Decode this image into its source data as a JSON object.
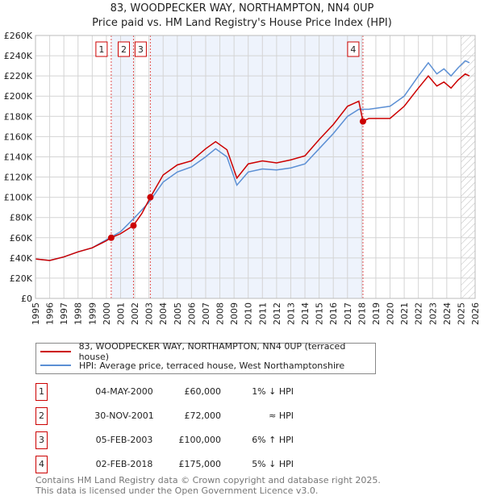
{
  "header": {
    "title": "83, WOODPECKER WAY, NORTHAMPTON, NN4 0UP",
    "subtitle": "Price paid vs. HM Land Registry's House Price Index (HPI)"
  },
  "chart_data": {
    "type": "line",
    "title": "83, WOODPECKER WAY, NORTHAMPTON, NN4 0UP",
    "subtitle": "Price paid vs. HM Land Registry's House Price Index (HPI)",
    "xlim": [
      1995,
      2026
    ],
    "ylim": [
      0,
      260000
    ],
    "x_ticks": [
      "1995",
      "1996",
      "1997",
      "1998",
      "1999",
      "2000",
      "2001",
      "2002",
      "2003",
      "2004",
      "2005",
      "2006",
      "2007",
      "2008",
      "2009",
      "2010",
      "2011",
      "2012",
      "2013",
      "2014",
      "2015",
      "2016",
      "2017",
      "2018",
      "2019",
      "2020",
      "2021",
      "2022",
      "2023",
      "2024",
      "2025",
      "2026"
    ],
    "y_ticks": [
      "£0",
      "£20K",
      "£40K",
      "£60K",
      "£80K",
      "£100K",
      "£120K",
      "£140K",
      "£160K",
      "£180K",
      "£200K",
      "£220K",
      "£240K",
      "£260K"
    ],
    "grid": true,
    "legend_placement": "below",
    "series": [
      {
        "name": "83, WOODPECKER WAY, NORTHAMPTON, NN4 0UP (terraced house)",
        "color": "#cc0000",
        "x": [
          1995,
          1996,
          1997,
          1998,
          1999,
          2000,
          2000.34,
          2001,
          2001.9,
          2002.5,
          2003.1,
          2004,
          2005,
          2006,
          2007,
          2007.7,
          2008.5,
          2009.2,
          2010,
          2011,
          2012,
          2013,
          2014,
          2015,
          2016,
          2017,
          2017.8,
          2018.09,
          2018.5,
          2019,
          2020,
          2021,
          2022,
          2022.7,
          2023.3,
          2023.8,
          2024.3,
          2024.8,
          2025.3,
          2025.6
        ],
        "y": [
          39000,
          37500,
          41000,
          46000,
          50000,
          57000,
          60000,
          64000,
          72000,
          84000,
          100000,
          122000,
          132000,
          136000,
          148000,
          155000,
          147000,
          119000,
          133000,
          136000,
          134000,
          137000,
          141000,
          157000,
          172000,
          190000,
          195000,
          175000,
          178000,
          178000,
          178000,
          190000,
          208000,
          220000,
          210000,
          214000,
          208000,
          216000,
          222000,
          220000
        ]
      },
      {
        "name": "HPI: Average price, terraced house, West Northamptonshire",
        "color": "#5b8fd4",
        "x": [
          1995,
          1996,
          1997,
          1998,
          1999,
          2000,
          2001,
          2002,
          2003,
          2004,
          2005,
          2006,
          2007,
          2007.7,
          2008.5,
          2009.2,
          2010,
          2011,
          2012,
          2013,
          2014,
          2015,
          2016,
          2017,
          2017.8,
          2018.5,
          2019,
          2020,
          2021,
          2022,
          2022.7,
          2023.3,
          2023.8,
          2024.3,
          2024.8,
          2025.3,
          2025.6
        ],
        "y": [
          39000,
          37500,
          41000,
          46000,
          50000,
          58000,
          66000,
          80000,
          95000,
          115000,
          125000,
          130000,
          140000,
          148000,
          140000,
          112000,
          125000,
          128000,
          127000,
          129000,
          133000,
          148000,
          163000,
          180000,
          187000,
          187000,
          188000,
          190000,
          200000,
          220000,
          233000,
          222000,
          227000,
          220000,
          228000,
          235000,
          233000
        ]
      }
    ],
    "sales": [
      {
        "label": "1",
        "x": 2000.34,
        "y": 60000
      },
      {
        "label": "2",
        "x": 2001.91,
        "y": 72000
      },
      {
        "label": "3",
        "x": 2003.1,
        "y": 100000
      },
      {
        "label": "4",
        "x": 2018.09,
        "y": 175000
      }
    ],
    "shaded_ranges": [
      [
        2000.34,
        2001.91
      ],
      [
        2003.1,
        2018.09
      ]
    ],
    "hatched_from": 2025.0
  },
  "legend": {
    "red": "83, WOODPECKER WAY, NORTHAMPTON, NN4 0UP (terraced house)",
    "blue": "HPI: Average price, terraced house, West Northamptonshire"
  },
  "table": [
    {
      "num": "1",
      "date": "04-MAY-2000",
      "price": "£60,000",
      "hpi": "1% ↓ HPI"
    },
    {
      "num": "2",
      "date": "30-NOV-2001",
      "price": "£72,000",
      "hpi": "≈ HPI"
    },
    {
      "num": "3",
      "date": "05-FEB-2003",
      "price": "£100,000",
      "hpi": "6% ↑ HPI"
    },
    {
      "num": "4",
      "date": "02-FEB-2018",
      "price": "£175,000",
      "hpi": "5% ↓ HPI"
    }
  ],
  "footer": {
    "line1": "Contains HM Land Registry data © Crown copyright and database right 2025.",
    "line2": "This data is licensed under the Open Government Licence v3.0."
  }
}
